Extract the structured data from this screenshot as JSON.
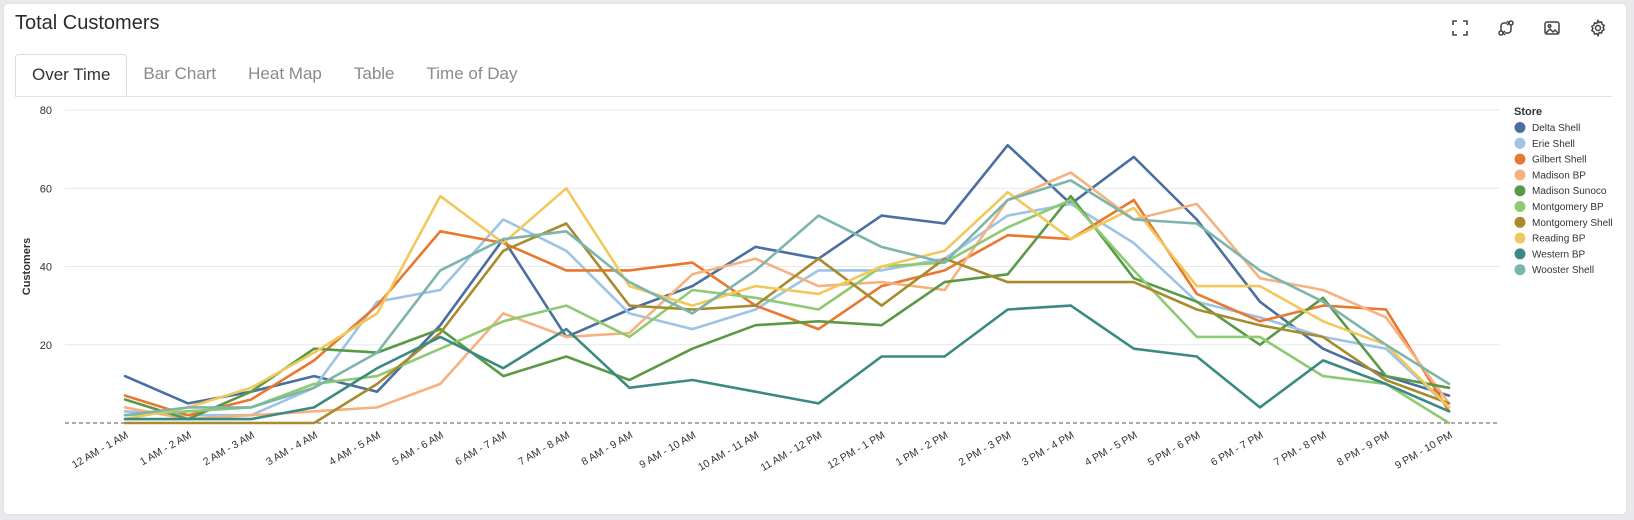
{
  "header": {
    "title": "Total Customers",
    "tools": [
      {
        "name": "fullscreen-icon"
      },
      {
        "name": "swap-icon"
      },
      {
        "name": "image-icon"
      },
      {
        "name": "gear-icon"
      }
    ]
  },
  "tabs": [
    {
      "label": "Over Time",
      "active": true
    },
    {
      "label": "Bar Chart",
      "active": false
    },
    {
      "label": "Heat Map",
      "active": false
    },
    {
      "label": "Table",
      "active": false
    },
    {
      "label": "Time of Day",
      "active": false
    }
  ],
  "chart_data": {
    "type": "line",
    "title": "",
    "xlabel": "",
    "ylabel": "Customers",
    "ylim": [
      0,
      80
    ],
    "yticks": [
      20,
      40,
      60,
      80
    ],
    "grid": true,
    "legend_title": "Store",
    "legend_position": "right",
    "categories": [
      "12 AM - 1 AM",
      "1 AM - 2 AM",
      "2 AM - 3 AM",
      "3 AM - 4 AM",
      "4 AM - 5 AM",
      "5 AM - 6 AM",
      "6 AM - 7 AM",
      "7 AM - 8 AM",
      "8 AM - 9 AM",
      "9 AM - 10 AM",
      "10 AM - 11 AM",
      "11 AM - 12 PM",
      "12 PM - 1 PM",
      "1 PM - 2 PM",
      "2 PM - 3 PM",
      "3 PM - 4 PM",
      "4 PM - 5 PM",
      "5 PM - 6 PM",
      "6 PM - 7 PM",
      "7 PM - 8 PM",
      "8 PM - 9 PM",
      "9 PM - 10 PM"
    ],
    "series": [
      {
        "name": "Delta Shell",
        "color": "#4a6fa0",
        "values": [
          12,
          5,
          8,
          12,
          8,
          25,
          47,
          22,
          29,
          35,
          45,
          42,
          53,
          51,
          71,
          56,
          68,
          52,
          31,
          19,
          12,
          7
        ]
      },
      {
        "name": "Erie Shell",
        "color": "#9dc3e6",
        "values": [
          3,
          2,
          2,
          9,
          31,
          34,
          52,
          44,
          28,
          24,
          29,
          39,
          39,
          42,
          53,
          56,
          46,
          31,
          27,
          22,
          19,
          4
        ]
      },
      {
        "name": "Gilbert Shell",
        "color": "#e9772e",
        "values": [
          7,
          2,
          6,
          16,
          30,
          49,
          46,
          39,
          39,
          41,
          30,
          24,
          35,
          39,
          48,
          47,
          57,
          33,
          26,
          30,
          29,
          3
        ]
      },
      {
        "name": "Madison BP",
        "color": "#f6b27e",
        "values": [
          4,
          1,
          2,
          3,
          4,
          10,
          28,
          22,
          23,
          38,
          42,
          35,
          36,
          34,
          57,
          64,
          52,
          56,
          37,
          34,
          27,
          5
        ]
      },
      {
        "name": "Madison Sunoco",
        "color": "#5a9a46",
        "values": [
          6,
          1,
          8,
          19,
          18,
          24,
          12,
          17,
          11,
          19,
          25,
          26,
          25,
          36,
          38,
          58,
          37,
          31,
          20,
          32,
          12,
          9
        ]
      },
      {
        "name": "Montgomery BP",
        "color": "#8dca72",
        "values": [
          2,
          3,
          4,
          10,
          12,
          19,
          26,
          30,
          22,
          34,
          32,
          29,
          40,
          41,
          50,
          57,
          39,
          22,
          22,
          12,
          10,
          0
        ]
      },
      {
        "name": "Montgomery Shell",
        "color": "#a88b2f",
        "values": [
          0,
          0,
          0,
          0,
          10,
          23,
          44,
          51,
          30,
          29,
          30,
          42,
          30,
          42,
          36,
          36,
          36,
          29,
          25,
          22,
          11,
          5
        ]
      },
      {
        "name": "Reading BP",
        "color": "#f0c85c",
        "values": [
          1,
          4,
          9,
          18,
          28,
          58,
          46,
          60,
          35,
          30,
          35,
          33,
          40,
          44,
          59,
          47,
          55,
          35,
          35,
          26,
          20,
          4
        ]
      },
      {
        "name": "Western BP",
        "color": "#3b8a81",
        "values": [
          1,
          1,
          1,
          4,
          14,
          22,
          14,
          24,
          9,
          11,
          8,
          5,
          17,
          17,
          29,
          30,
          19,
          17,
          4,
          16,
          10,
          3
        ]
      },
      {
        "name": "Wooster Shell",
        "color": "#7db5ad",
        "values": [
          2,
          4,
          4,
          9,
          18,
          39,
          47,
          49,
          36,
          28,
          39,
          53,
          45,
          41,
          57,
          62,
          52,
          51,
          39,
          31,
          20,
          10
        ]
      }
    ]
  }
}
